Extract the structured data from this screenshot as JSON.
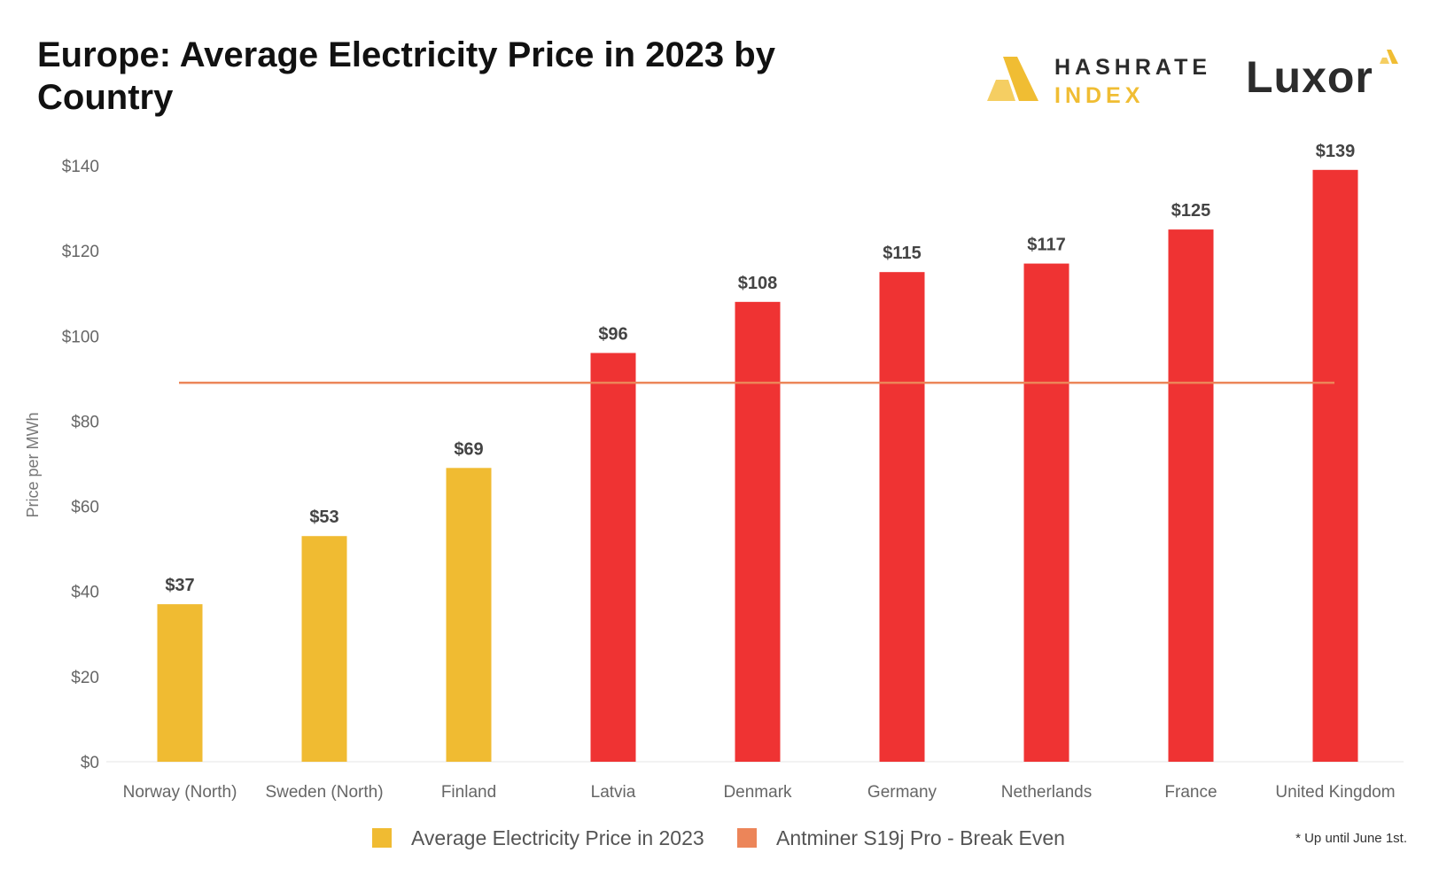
{
  "title": "Europe: Average Electricity Price in 2023 by Country",
  "logos": {
    "hashrate_line1": "HASHRATE",
    "hashrate_line2": "INDEX",
    "luxor": "Luxor"
  },
  "footnote": "* Up until June 1st.",
  "colors": {
    "gold": "#f0bb32",
    "red": "#ef3333",
    "break_even": "#ec8559",
    "axis_text": "#666666",
    "label_text": "#444444"
  },
  "chart_data": {
    "type": "bar",
    "title": "Europe: Average Electricity Price in 2023 by Country",
    "xlabel": "",
    "ylabel": "Price per MWh",
    "ylim": [
      0,
      140
    ],
    "yticks": [
      0,
      20,
      40,
      60,
      80,
      100,
      120,
      140
    ],
    "ytick_labels": [
      "$0",
      "$20",
      "$40",
      "$60",
      "$80",
      "$100",
      "$120",
      "$140"
    ],
    "categories": [
      "Norway (North)",
      "Sweden (North)",
      "Finland",
      "Latvia",
      "Denmark",
      "Germany",
      "Netherlands",
      "France",
      "United Kingdom"
    ],
    "series": [
      {
        "name": "Average Electricity Price in 2023",
        "values": [
          37,
          53,
          69,
          96,
          108,
          115,
          117,
          125,
          139
        ],
        "data_labels": [
          "$37",
          "$53",
          "$69",
          "$96",
          "$108",
          "$115",
          "$117",
          "$125",
          "$139"
        ],
        "bar_colors": [
          "gold",
          "gold",
          "gold",
          "red",
          "red",
          "red",
          "red",
          "red",
          "red"
        ]
      }
    ],
    "reference_lines": [
      {
        "name": "Antminer S19j Pro - Break Even",
        "value": 89
      }
    ],
    "legend": {
      "position": "bottom",
      "items": [
        "Average Electricity Price in 2023",
        "Antminer S19j Pro - Break Even"
      ]
    },
    "grid": false
  }
}
